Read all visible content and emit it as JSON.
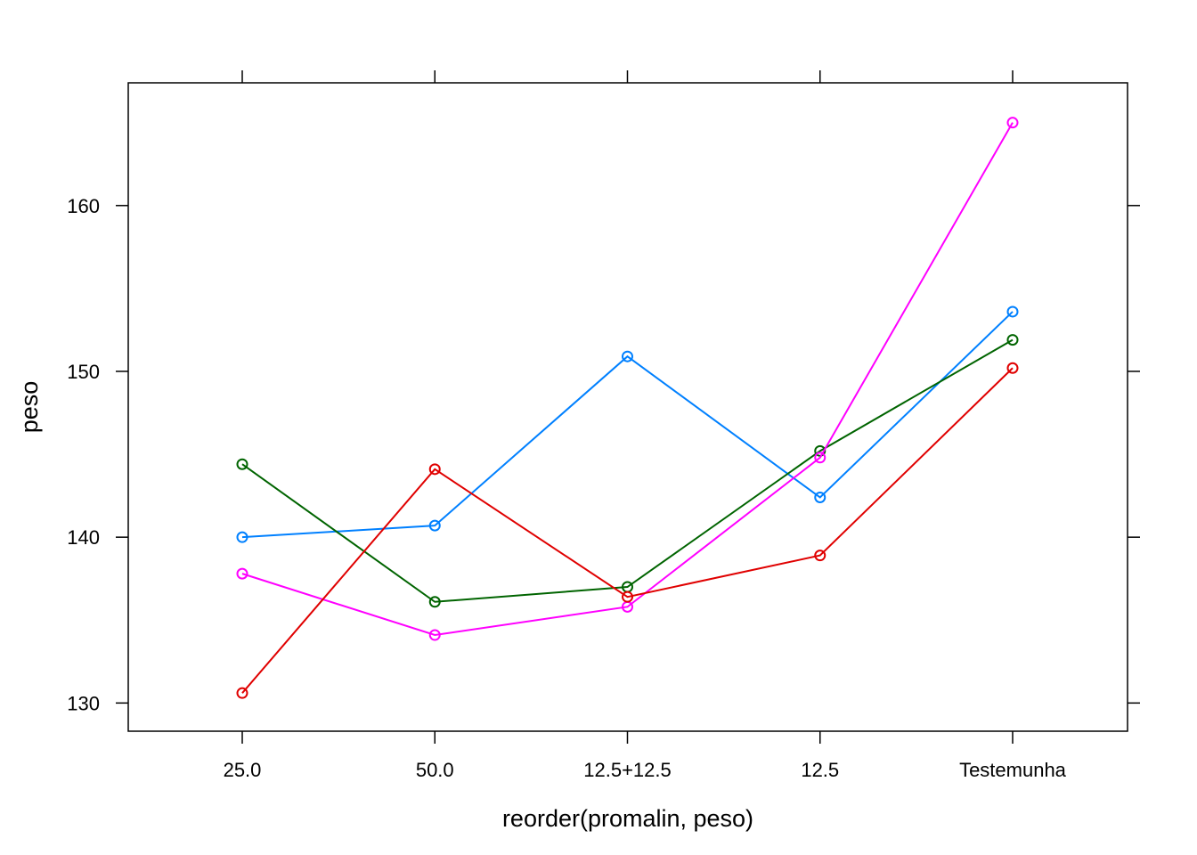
{
  "chart_data": {
    "type": "line",
    "title": "",
    "xlabel": "reorder(promalin, peso)",
    "ylabel": "peso",
    "categories": [
      "25.0",
      "50.0",
      "12.5+12.5",
      "12.5",
      "Testemunha"
    ],
    "ylim": [
      128.3,
      167.4
    ],
    "yticks": [
      130,
      140,
      150,
      160
    ],
    "grid": false,
    "legend": "none",
    "series": [
      {
        "color": "#0080ff",
        "values": [
          140.0,
          140.7,
          150.9,
          142.4,
          153.6
        ]
      },
      {
        "color": "#006400",
        "values": [
          144.4,
          136.1,
          137.0,
          145.2,
          151.9
        ]
      },
      {
        "color": "#ff00ff",
        "values": [
          137.8,
          134.1,
          135.8,
          144.8,
          165.0
        ]
      },
      {
        "color": "#e00000",
        "values": [
          130.6,
          144.1,
          136.4,
          138.9,
          150.2
        ]
      }
    ]
  }
}
